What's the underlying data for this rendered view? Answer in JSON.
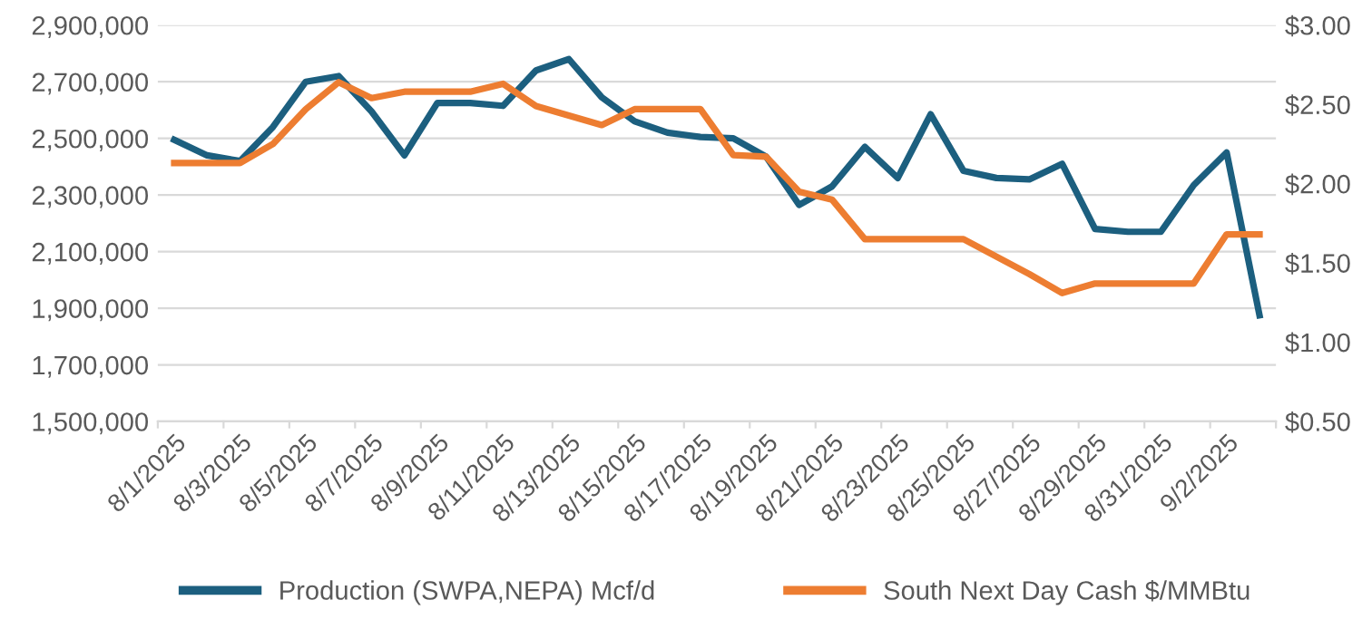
{
  "chart_data": {
    "type": "line",
    "categories": [
      "8/1/2025",
      null,
      "8/3/2025",
      null,
      "8/5/2025",
      null,
      "8/7/2025",
      null,
      "8/9/2025",
      null,
      "8/11/2025",
      null,
      "8/13/2025",
      null,
      "8/15/2025",
      null,
      "8/17/2025",
      null,
      "8/19/2025",
      null,
      "8/21/2025",
      null,
      "8/23/2025",
      null,
      "8/25/2025",
      null,
      "8/27/2025",
      null,
      "8/29/2025",
      null,
      "8/31/2025",
      null,
      "9/2/2025",
      null
    ],
    "series": [
      {
        "name": "Production (SWPA,NEPA) Mcf/d",
        "color": "#1c5f7f",
        "values": [
          2495000,
          2440000,
          2420000,
          2540000,
          2700000,
          2720000,
          2595000,
          2440000,
          2625000,
          2625000,
          2615000,
          2740000,
          2780000,
          2645000,
          2560000,
          2520000,
          2505000,
          2500000,
          2435000,
          2265000,
          2330000,
          2470000,
          2360000,
          2585000,
          2385000,
          2360000,
          2355000,
          2410000,
          2180000,
          2170000,
          2170000,
          2335000,
          2450000,
          1875000
        ]
      },
      {
        "name": "South Next Day Cash $/MMBtu",
        "color": "#ed7d31",
        "axis": "y2",
        "values": [
          2.13,
          2.13,
          2.13,
          2.25,
          2.47,
          2.64,
          2.54,
          2.58,
          2.58,
          2.58,
          2.63,
          2.49,
          2.43,
          2.37,
          2.47,
          2.47,
          2.47,
          2.18,
          2.17,
          1.95,
          1.9,
          1.65,
          1.65,
          1.65,
          1.65,
          1.54,
          1.43,
          1.31,
          1.37,
          1.37,
          1.37,
          1.37,
          1.68,
          1.68
        ]
      }
    ],
    "ylim": [
      1500000,
      2900000
    ],
    "yticks": [
      {
        "value": 1500000,
        "label": "1,500,000"
      },
      {
        "value": 1700000,
        "label": "1,700,000"
      },
      {
        "value": 1900000,
        "label": "1,900,000"
      },
      {
        "value": 2100000,
        "label": "2,100,000"
      },
      {
        "value": 2300000,
        "label": "2,300,000"
      },
      {
        "value": 2500000,
        "label": "2,500,000"
      },
      {
        "value": 2700000,
        "label": "2,700,000"
      },
      {
        "value": 2900000,
        "label": "2,900,000"
      }
    ],
    "y2lim": [
      0.5,
      3.0
    ],
    "y2ticks": [
      {
        "value": 0.5,
        "label": "$0.50"
      },
      {
        "value": 1.0,
        "label": "$1.00"
      },
      {
        "value": 1.5,
        "label": "$1.50"
      },
      {
        "value": 2.0,
        "label": "$2.00"
      },
      {
        "value": 2.5,
        "label": "$2.50"
      },
      {
        "value": 3.0,
        "label": "$3.00"
      }
    ],
    "grid": "y",
    "legend": "bottom",
    "marker": "none",
    "line_style": "solid"
  }
}
